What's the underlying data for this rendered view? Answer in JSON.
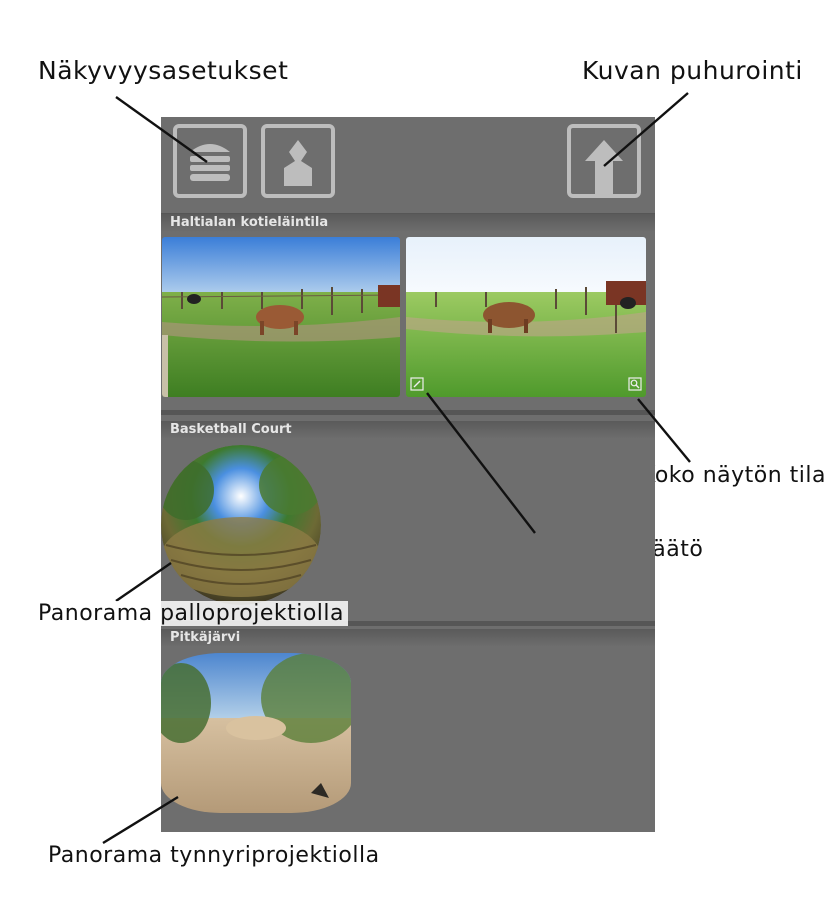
{
  "callouts": {
    "visibility_settings": "Näkyvyysasetukset",
    "image_share": "Kuvan puhurointi",
    "fullscreen_mode": "Koko näytön tila",
    "image_settings_adjust": "Kuvan asetusten säätö",
    "panorama_sphere": "Panorama palloprojektiolla",
    "panorama_barrel": "Panorama tynnyriprojektiolla"
  },
  "toolbar": {
    "icons": [
      "hamburger-menu-icon",
      "user-profile-icon",
      "share-upload-icon"
    ]
  },
  "sections": [
    {
      "title": "Haltialan kotieläintila"
    },
    {
      "title": "Basketball Court"
    },
    {
      "title": "Pitkäjärvi"
    }
  ],
  "colors": {
    "app_bg": "#6e6e6e",
    "toolbar_icon": "#bdbdbd",
    "section_text": "#e6e6e6"
  }
}
